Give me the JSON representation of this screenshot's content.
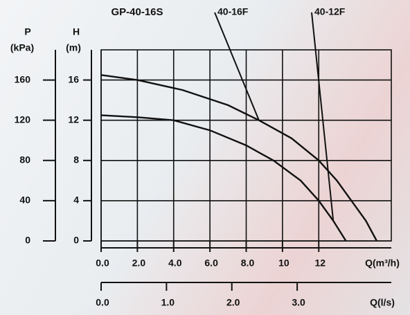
{
  "chart_data": {
    "type": "line",
    "title": "GP-40-16S",
    "y_label_unit": "(m)",
    "y_label": "H",
    "y2_label": "P",
    "y2_label_unit": "(kPa)",
    "x_label": "Q(m³/h)",
    "x2_label": "Q(l/s)",
    "xlim": [
      0,
      16
    ],
    "xticks": [
      {
        "value": 0,
        "label": "0.0"
      },
      {
        "value": 2,
        "label": "2.0"
      },
      {
        "value": 4,
        "label": "4.0"
      },
      {
        "value": 6,
        "label": "6.0"
      },
      {
        "value": 8,
        "label": "8.0"
      },
      10,
      12
    ],
    "ylim": [
      0,
      19
    ],
    "yticks": [
      0,
      4,
      8,
      12,
      16
    ],
    "y2lim": [
      0,
      190
    ],
    "y2ticks": [
      0,
      40,
      80,
      120,
      160
    ],
    "x2lim": [
      0,
      4.44
    ],
    "x2ticks": [
      {
        "value": 0,
        "label": "0.0"
      },
      {
        "value": 1,
        "label": "1.0"
      },
      {
        "value": 2,
        "label": "2.0"
      },
      {
        "value": 3,
        "label": "3.0"
      }
    ],
    "grid": true,
    "series": [
      {
        "name": "40-16F",
        "color": "#111111",
        "x": [
          0,
          2,
          4.5,
          7,
          8.7,
          10.5,
          12,
          13,
          13.8,
          14.6,
          15.2
        ],
        "values": [
          16.5,
          16,
          15,
          13.5,
          12,
          10.2,
          8,
          6,
          4,
          2,
          0
        ]
      },
      {
        "name": "40-12F",
        "color": "#111111",
        "x": [
          0,
          2,
          4,
          6,
          8,
          9.5,
          11,
          12,
          12.8,
          13.5
        ],
        "values": [
          12.5,
          12.3,
          12,
          11,
          9.5,
          8,
          6,
          4,
          2,
          0
        ]
      }
    ]
  }
}
